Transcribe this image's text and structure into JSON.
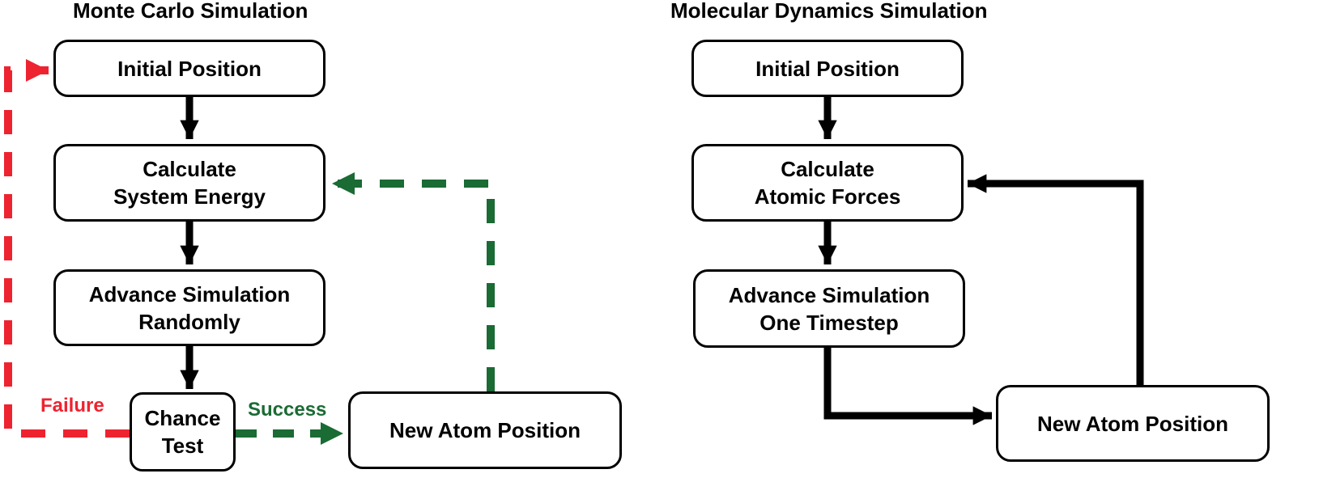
{
  "diagram": {
    "monte_carlo": {
      "title": "Monte Carlo Simulation",
      "nodes": {
        "initial": [
          "Initial Position"
        ],
        "energy": [
          "Calculate",
          "System Energy"
        ],
        "advance": [
          "Advance Simulation",
          "Randomly"
        ],
        "chance": [
          "Chance",
          "Test"
        ],
        "new_atom": [
          "New Atom Position"
        ]
      },
      "edge_labels": {
        "failure": "Failure",
        "success": "Success"
      }
    },
    "molecular_dynamics": {
      "title": "Molecular Dynamics Simulation",
      "nodes": {
        "initial": [
          "Initial Position"
        ],
        "forces": [
          "Calculate",
          "Atomic Forces"
        ],
        "advance": [
          "Advance Simulation",
          "One Timestep"
        ],
        "new_atom": [
          "New Atom Position"
        ]
      }
    },
    "colors": {
      "failure": "#ee2330",
      "success": "#1a6b34",
      "default": "#000000"
    }
  }
}
